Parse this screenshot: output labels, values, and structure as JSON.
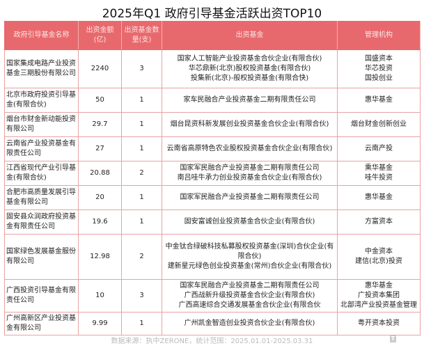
{
  "title": "2025年Q1 政府引导基金活跃出资TOP10",
  "headers": [
    "政府引导基金名称",
    "出资金额(亿)",
    "出资基金数量(支)",
    "出资基金",
    "管理机构"
  ],
  "rows": [
    {
      "name": "国家集成电路产业投资基金三期股份有限公司",
      "amount": "2240",
      "count": "3",
      "funds": [
        "国家人工智能产业投资基金合伙企业(有限合伙)",
        "华芯鼎新(北京)股权投资基金(有限合伙)",
        "投集新(北京)-般权投资基金(有限合快)"
      ],
      "managers": [
        "国盛资本",
        "华芯投资",
        "国投创业"
      ]
    },
    {
      "name": "北京市政府投资引导基金(有限合伙)",
      "amount": "50",
      "count": "1",
      "funds": [
        "家车民融合产业投资基金二期有限责任公司"
      ],
      "managers": [
        "惠华基金"
      ]
    },
    {
      "name": "烟台市财金新动能投资有限公司",
      "amount": "29.7",
      "count": "1",
      "funds": [
        "烟台昆资科新发展创业投资基金合伙企业(有限合伙)"
      ],
      "managers": [
        "烟台财金创新创业"
      ]
    },
    {
      "name": "云南省产业投资基金有限责任公司",
      "amount": "27",
      "count": "1",
      "funds": [
        "云南省高原特色农业股权投资基金合伙企业(有限合伙)"
      ],
      "managers": [
        "云南产投"
      ]
    },
    {
      "name": "江西省现代产业引导基金(有限合伙)",
      "amount": "20.88",
      "count": "2",
      "funds": [
        "国家军民融合产业投资基金二期有限责任公司",
        "南吕哇牛承力创业投资基金合伙企业(有限合伙)"
      ],
      "managers": [
        "熏华基金",
        "哇牛投资"
      ]
    },
    {
      "name": "合肥市高质量发展引导基金有限公司",
      "amount": "20",
      "count": "1",
      "funds": [
        "国家军民融合产业投资基金二期有限责任公司"
      ],
      "managers": [
        "惠华基金"
      ]
    },
    {
      "name": "固安县众润政府投资基金有限责任公司",
      "amount": "19.6",
      "count": "1",
      "funds": [
        "固安富诚创业投资基金合伙企业(有限合伙)"
      ],
      "managers": [
        "方富资本"
      ]
    },
    {
      "name": "国家绿色发展基金服份有限公司",
      "amount": "12.98",
      "count": "2",
      "funds": [
        "中金钛合绿破科技私募股权投资基金(深圳)合伙企业(有限合伙)",
        "建新星元绿色创业投资基金(常州)合伙企业(有限合伙)"
      ],
      "managers": [
        "中金资本",
        "建信(北京)投资"
      ]
    },
    {
      "name": "广西投资引导基金有限责任公司",
      "amount": "10",
      "count": "3",
      "funds": [
        "国家车民融合产业投资基金二期有限责任公司",
        "广西战新升级投资基金合伙企业(有限合伙)",
        "广西高速综合交通发展基金合伙企业(有限合伙"
      ],
      "managers": [
        "惠华基金",
        "广投资本集团",
        "北部湾产业投资基金管理"
      ]
    },
    {
      "name": "广州高新区产业投资基金有限公司",
      "amount": "9.99",
      "count": "1",
      "funds": [
        "广州凯金智造创业投资合伙企业(有限合伙)"
      ],
      "managers": [
        "粤开资本投资"
      ]
    }
  ],
  "footer": "数据来源：执中ZERONE，统计范围：2025.01.01-2025.03.31",
  "logo": "钛媒体",
  "colors": {
    "header": "#e8696d",
    "border": "#e8a2a4"
  }
}
